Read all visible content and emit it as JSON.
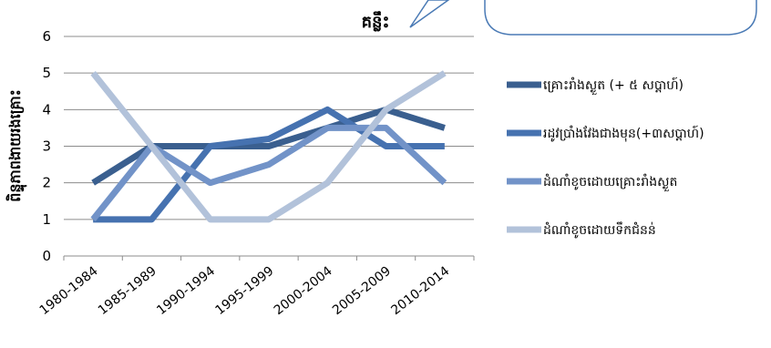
{
  "chart_data": {
    "type": "line",
    "title": "",
    "xlabel": "",
    "ylabel": "ពិន្ទុភាពងាយរងគ្រោះ",
    "categories": [
      "1980-1984",
      "1985-1989",
      "1990-1994",
      "1995-1999",
      "2000-2004",
      "2005-2009",
      "2010-2014"
    ],
    "ylim": [
      0,
      6
    ],
    "yticks": [
      "0",
      "1",
      "2",
      "3",
      "4",
      "5",
      "6"
    ],
    "grid": true,
    "legend_position": "right",
    "series": [
      {
        "name": "គ្រោះរាំងស្ងួត (+ ៥ សប្តាហ៍)",
        "color": "#3a5f8f",
        "values": [
          2,
          3,
          3,
          3,
          3.5,
          4,
          3.5
        ]
      },
      {
        "name": "រដូវប្រាំងវែងជាងមុន(+៣សប្តាហ៍)",
        "color": "#4672b0",
        "values": [
          1,
          1,
          3,
          3.2,
          4,
          3,
          3
        ]
      },
      {
        "name": "ដំណាំខូចដោយគ្រោះរាំងស្ងួត",
        "color": "#7293c8",
        "values": [
          1,
          3,
          2,
          2.5,
          3.5,
          3.5,
          2
        ]
      },
      {
        "name": "ដំណាំខូចដោយទឹកជំនន់",
        "color": "#b2c2da",
        "values": [
          5,
          3,
          1,
          1,
          2,
          4,
          5
        ]
      }
    ]
  },
  "callout": {
    "label": "គន្លឹះ",
    "border_color": "#4a7ab5"
  }
}
